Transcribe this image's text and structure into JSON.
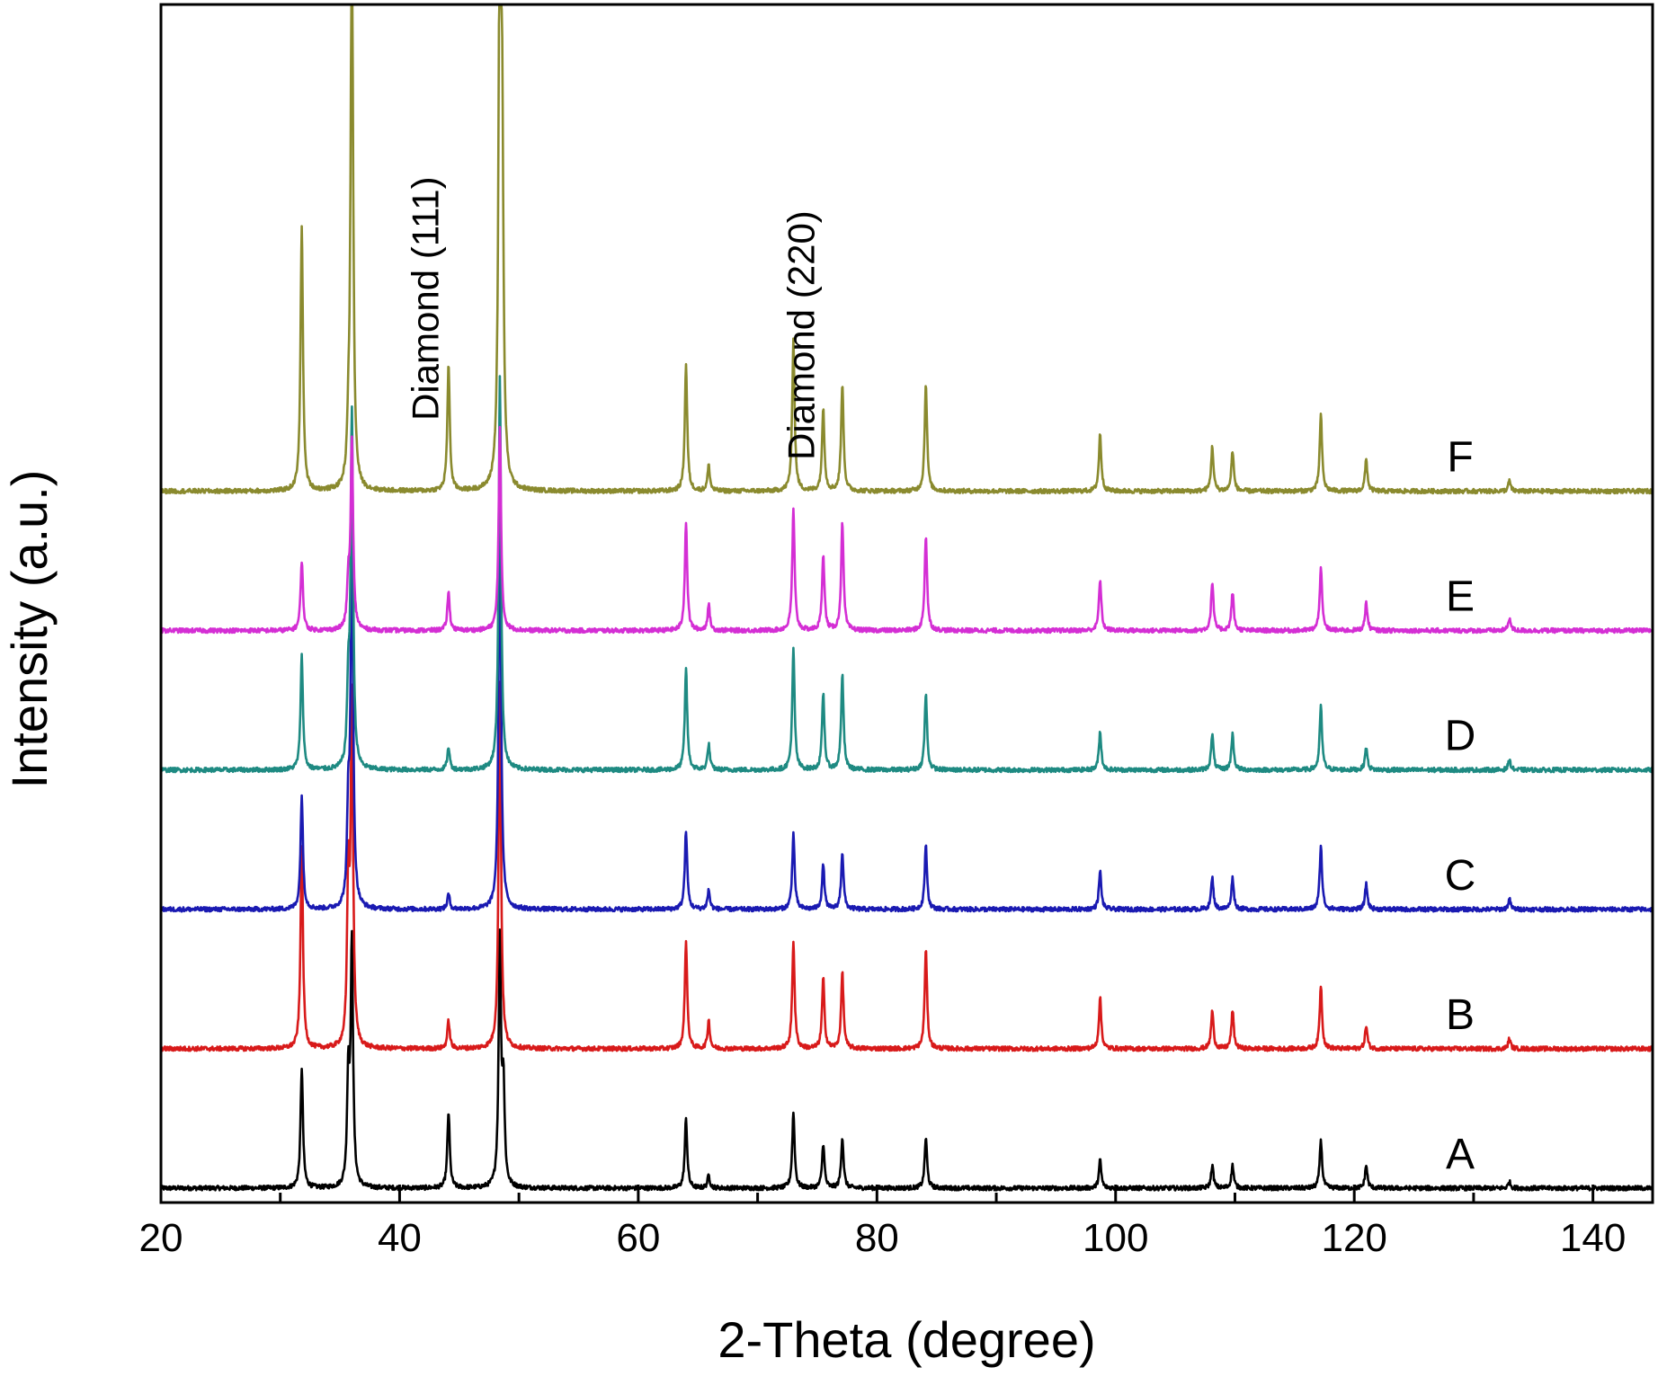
{
  "chart_data": {
    "type": "line",
    "xlabel": "2-Theta (degree)",
    "ylabel": "Intensity (a.u.)",
    "xlim": [
      20,
      145
    ],
    "x_ticks": [
      20,
      40,
      60,
      80,
      100,
      120,
      140
    ],
    "y_ticks_shown": false,
    "grid": false,
    "legend": "labels at right end of each trace",
    "annotations": [
      {
        "text": "Diamond (111)",
        "x": 44,
        "orientation": "vertical"
      },
      {
        "text": "Diamond (220)",
        "x": 75.5,
        "orientation": "vertical"
      }
    ],
    "series": [
      {
        "name": "A",
        "color": "#000000",
        "baseline": 0.0,
        "peaks": [
          [
            31.8,
            0.95
          ],
          [
            35.7,
            0.85
          ],
          [
            36.0,
            1.9
          ],
          [
            44.1,
            0.6
          ],
          [
            48.4,
            1.95
          ],
          [
            48.7,
            0.75
          ],
          [
            64.0,
            0.55
          ],
          [
            65.9,
            0.1
          ],
          [
            73.0,
            0.6
          ],
          [
            75.5,
            0.35
          ],
          [
            77.1,
            0.4
          ],
          [
            84.1,
            0.4
          ],
          [
            98.7,
            0.22
          ],
          [
            108.1,
            0.18
          ],
          [
            109.8,
            0.18
          ],
          [
            117.2,
            0.38
          ],
          [
            121.0,
            0.18
          ],
          [
            133.0,
            0.05
          ]
        ]
      },
      {
        "name": "B",
        "color": "#d81a1a",
        "baseline": 1.1,
        "peaks": [
          [
            31.8,
            1.6
          ],
          [
            35.7,
            1.25
          ],
          [
            36.0,
            2.7
          ],
          [
            44.1,
            0.22
          ],
          [
            48.4,
            2.9
          ],
          [
            64.0,
            0.85
          ],
          [
            65.9,
            0.22
          ],
          [
            73.0,
            0.85
          ],
          [
            75.5,
            0.55
          ],
          [
            77.1,
            0.6
          ],
          [
            84.1,
            0.78
          ],
          [
            98.7,
            0.4
          ],
          [
            108.1,
            0.3
          ],
          [
            109.8,
            0.3
          ],
          [
            117.2,
            0.5
          ],
          [
            121.0,
            0.18
          ],
          [
            133.0,
            0.08
          ]
        ]
      },
      {
        "name": "C",
        "color": "#1a1ab2",
        "baseline": 2.2,
        "peaks": [
          [
            31.8,
            0.9
          ],
          [
            35.7,
            0.7
          ],
          [
            36.0,
            3.1
          ],
          [
            44.1,
            0.12
          ],
          [
            48.4,
            3.3
          ],
          [
            64.0,
            0.62
          ],
          [
            65.9,
            0.15
          ],
          [
            73.0,
            0.6
          ],
          [
            75.5,
            0.35
          ],
          [
            77.1,
            0.45
          ],
          [
            84.1,
            0.5
          ],
          [
            98.7,
            0.3
          ],
          [
            108.1,
            0.25
          ],
          [
            109.8,
            0.25
          ],
          [
            117.2,
            0.5
          ],
          [
            121.0,
            0.2
          ],
          [
            133.0,
            0.08
          ]
        ]
      },
      {
        "name": "D",
        "color": "#1e8a82",
        "baseline": 3.3,
        "peaks": [
          [
            31.8,
            0.9
          ],
          [
            35.7,
            0.6
          ],
          [
            36.0,
            2.8
          ],
          [
            44.1,
            0.18
          ],
          [
            48.4,
            3.1
          ],
          [
            64.0,
            0.8
          ],
          [
            65.9,
            0.2
          ],
          [
            73.0,
            0.95
          ],
          [
            75.5,
            0.6
          ],
          [
            77.1,
            0.75
          ],
          [
            84.1,
            0.6
          ],
          [
            98.7,
            0.3
          ],
          [
            108.1,
            0.28
          ],
          [
            109.8,
            0.28
          ],
          [
            117.2,
            0.5
          ],
          [
            121.0,
            0.18
          ],
          [
            133.0,
            0.08
          ]
        ]
      },
      {
        "name": "E",
        "color": "#d42ed4",
        "baseline": 4.4,
        "peaks": [
          [
            31.8,
            0.55
          ],
          [
            35.7,
            0.35
          ],
          [
            36.0,
            1.5
          ],
          [
            44.1,
            0.3
          ],
          [
            48.4,
            1.6
          ],
          [
            64.0,
            0.85
          ],
          [
            65.9,
            0.2
          ],
          [
            73.0,
            0.95
          ],
          [
            75.5,
            0.6
          ],
          [
            77.1,
            0.85
          ],
          [
            84.1,
            0.75
          ],
          [
            98.7,
            0.4
          ],
          [
            108.1,
            0.38
          ],
          [
            109.8,
            0.3
          ],
          [
            117.2,
            0.5
          ],
          [
            121.0,
            0.22
          ],
          [
            133.0,
            0.1
          ]
        ]
      },
      {
        "name": "F",
        "color": "#8a8a2e",
        "baseline": 5.5,
        "peaks": [
          [
            31.8,
            2.1
          ],
          [
            35.7,
            0.3
          ],
          [
            36.0,
            4.7
          ],
          [
            44.1,
            1.0
          ],
          [
            48.4,
            4.8
          ],
          [
            48.6,
            2.3
          ],
          [
            64.0,
            1.0
          ],
          [
            65.9,
            0.2
          ],
          [
            73.0,
            1.2
          ],
          [
            75.5,
            0.65
          ],
          [
            77.1,
            0.85
          ],
          [
            84.1,
            0.85
          ],
          [
            98.7,
            0.45
          ],
          [
            108.1,
            0.35
          ],
          [
            109.8,
            0.32
          ],
          [
            117.2,
            0.6
          ],
          [
            121.0,
            0.25
          ],
          [
            133.0,
            0.08
          ]
        ]
      }
    ]
  }
}
